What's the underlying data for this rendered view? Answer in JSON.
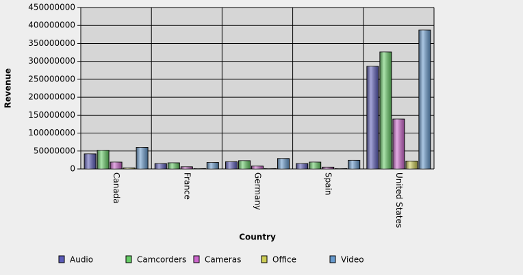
{
  "chart_data": {
    "type": "bar",
    "x_label": "Country",
    "y_label": "Revenue",
    "categories": [
      "Canada",
      "France",
      "Germany",
      "Spain",
      "United States"
    ],
    "series": [
      {
        "name": "Audio",
        "color": "#5b5bb8",
        "values": [
          42000000,
          15000000,
          20000000,
          15000000,
          286000000
        ]
      },
      {
        "name": "Camcorders",
        "color": "#66cc66",
        "values": [
          52000000,
          17000000,
          23000000,
          19000000,
          326000000
        ]
      },
      {
        "name": "Cameras",
        "color": "#cc66cc",
        "values": [
          19000000,
          6000000,
          8000000,
          5000000,
          139000000
        ]
      },
      {
        "name": "Office",
        "color": "#cccc55",
        "values": [
          3000000,
          1000000,
          1000000,
          1000000,
          22000000
        ]
      },
      {
        "name": "Video",
        "color": "#6699cc",
        "values": [
          60000000,
          18000000,
          29000000,
          24000000,
          387000000
        ]
      }
    ],
    "ylim": [
      0,
      450000000
    ],
    "yticks": [
      0,
      50000000,
      100000000,
      150000000,
      200000000,
      250000000,
      300000000,
      350000000,
      400000000,
      450000000
    ],
    "grid": true
  }
}
